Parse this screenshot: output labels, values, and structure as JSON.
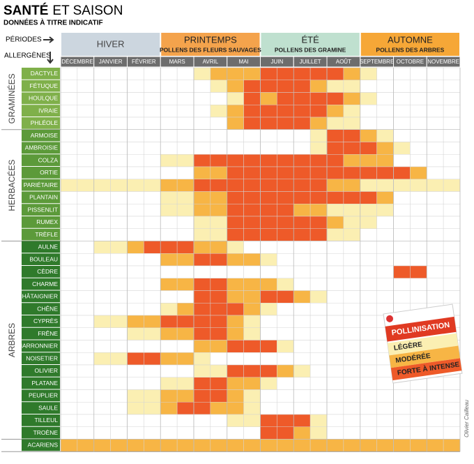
{
  "chart_data": {
    "type": "heatmap",
    "title": "SANTÉ",
    "title_suffix": "ET SAISON",
    "subtitle": "DONNÉES À TITRE INDICATIF",
    "periods_label": "PÉRIODES",
    "allergens_label": "ALLERGÈNES",
    "seasons": [
      {
        "name": "HIVER",
        "subtitle": null,
        "color": "#ccd6df",
        "months": [
          "DÉCEMBRE",
          "JANVIER",
          "FÉVRIER"
        ]
      },
      {
        "name": "PRINTEMPS",
        "subtitle": "POLLENS DES FLEURS SAUVAGES",
        "color": "#f4a34c",
        "months": [
          "MARS",
          "AVRIL",
          "MAI"
        ]
      },
      {
        "name": "ÉTÉ",
        "subtitle": "POLLENS DES GRAMINE",
        "color": "#bfe0cf",
        "months": [
          "JUIN",
          "JUILLET",
          "AOÛT"
        ]
      },
      {
        "name": "AUTOMNE",
        "subtitle": "POLLENS DES ARBRES",
        "color": "#f6a737",
        "months": [
          "SEPTEMBRE",
          "OCTOBRE",
          "NOVEMBRE"
        ]
      }
    ],
    "groups": [
      {
        "label": "GRAMINÉES",
        "color": "#7fb04a",
        "rows": [
          {
            "name": "DACTYLE",
            "values": [
              0,
              0,
              0,
              0,
              0,
              0,
              0,
              0,
              1,
              2,
              2,
              2,
              3,
              3,
              3,
              3,
              3,
              2,
              1,
              0,
              0,
              0,
              0,
              0
            ]
          },
          {
            "name": "FÉTUQUE",
            "values": [
              0,
              0,
              0,
              0,
              0,
              0,
              0,
              0,
              0,
              1,
              2,
              3,
              3,
              3,
              3,
              2,
              1,
              1,
              0,
              0,
              0,
              0,
              0,
              0
            ]
          },
          {
            "name": "HOULQUE",
            "values": [
              0,
              0,
              0,
              0,
              0,
              0,
              0,
              0,
              0,
              0,
              1,
              3,
              2,
              3,
              3,
              3,
              3,
              2,
              1,
              0,
              0,
              0,
              0,
              0
            ]
          },
          {
            "name": "IVRAIE",
            "values": [
              0,
              0,
              0,
              0,
              0,
              0,
              0,
              0,
              0,
              1,
              2,
              3,
              3,
              3,
              3,
              3,
              2,
              1,
              0,
              0,
              0,
              0,
              0,
              0
            ]
          },
          {
            "name": "PHLÉOLE",
            "values": [
              0,
              0,
              0,
              0,
              0,
              0,
              0,
              0,
              0,
              0,
              2,
              3,
              3,
              3,
              3,
              2,
              1,
              1,
              0,
              0,
              0,
              0,
              0,
              0
            ]
          }
        ]
      },
      {
        "label": "HERBACÉES",
        "color": "#5c9a3a",
        "rows": [
          {
            "name": "ARMOISE",
            "values": [
              0,
              0,
              0,
              0,
              0,
              0,
              0,
              0,
              0,
              0,
              0,
              0,
              0,
              0,
              0,
              1,
              3,
              3,
              2,
              1,
              0,
              0,
              0,
              0
            ]
          },
          {
            "name": "AMBROISIE",
            "values": [
              0,
              0,
              0,
              0,
              0,
              0,
              0,
              0,
              0,
              0,
              0,
              0,
              0,
              0,
              0,
              1,
              3,
              3,
              3,
              2,
              1,
              0,
              0,
              0
            ]
          },
          {
            "name": "COLZA",
            "values": [
              0,
              0,
              0,
              0,
              0,
              0,
              1,
              1,
              3,
              3,
              3,
              3,
              3,
              3,
              3,
              3,
              3,
              2,
              2,
              2,
              0,
              0,
              0,
              0
            ]
          },
          {
            "name": "ORTIE",
            "values": [
              0,
              0,
              0,
              0,
              0,
              0,
              0,
              0,
              2,
              2,
              3,
              3,
              3,
              3,
              3,
              3,
              3,
              3,
              3,
              3,
              3,
              2,
              0,
              0
            ]
          },
          {
            "name": "PARIÉTAIRE",
            "values": [
              1,
              1,
              1,
              1,
              1,
              1,
              2,
              2,
              3,
              3,
              3,
              3,
              3,
              3,
              3,
              3,
              2,
              2,
              1,
              1,
              1,
              1,
              1,
              1
            ]
          },
          {
            "name": "PLANTAIN",
            "values": [
              0,
              0,
              0,
              0,
              0,
              0,
              1,
              1,
              2,
              2,
              3,
              3,
              3,
              3,
              3,
              3,
              3,
              3,
              3,
              2,
              0,
              0,
              0,
              0
            ]
          },
          {
            "name": "PISSENLIT",
            "values": [
              0,
              0,
              0,
              0,
              0,
              0,
              1,
              1,
              2,
              2,
              3,
              3,
              3,
              3,
              2,
              2,
              1,
              1,
              1,
              1,
              0,
              0,
              0,
              0
            ]
          },
          {
            "name": "RUMEX",
            "values": [
              0,
              0,
              0,
              0,
              0,
              0,
              0,
              0,
              1,
              1,
              3,
              3,
              3,
              3,
              3,
              3,
              2,
              1,
              1,
              0,
              0,
              0,
              0,
              0
            ]
          },
          {
            "name": "TRÈFLE",
            "values": [
              0,
              0,
              0,
              0,
              0,
              0,
              0,
              0,
              1,
              1,
              3,
              3,
              3,
              3,
              3,
              3,
              1,
              1,
              0,
              0,
              0,
              0,
              0,
              0
            ]
          }
        ]
      },
      {
        "label": "ARBRES",
        "color": "#2f7a2b",
        "rows": [
          {
            "name": "AULNE",
            "values": [
              0,
              0,
              1,
              1,
              2,
              3,
              3,
              3,
              2,
              2,
              1,
              0,
              0,
              0,
              0,
              0,
              0,
              0,
              0,
              0,
              0,
              0,
              0,
              0
            ]
          },
          {
            "name": "BOULEAU",
            "values": [
              0,
              0,
              0,
              0,
              0,
              0,
              2,
              2,
              3,
              3,
              2,
              2,
              1,
              0,
              0,
              0,
              0,
              0,
              0,
              0,
              0,
              0,
              0,
              0
            ]
          },
          {
            "name": "CÈDRE",
            "values": [
              0,
              0,
              0,
              0,
              0,
              0,
              0,
              0,
              0,
              0,
              0,
              0,
              0,
              0,
              0,
              0,
              0,
              0,
              0,
              0,
              3,
              3,
              0,
              0
            ]
          },
          {
            "name": "CHARME",
            "values": [
              0,
              0,
              0,
              0,
              0,
              0,
              2,
              2,
              3,
              3,
              2,
              2,
              2,
              1,
              0,
              0,
              0,
              0,
              0,
              0,
              0,
              0,
              0,
              0
            ]
          },
          {
            "name": "CHÂTAIGNIER",
            "values": [
              0,
              0,
              0,
              0,
              0,
              0,
              0,
              0,
              3,
              3,
              2,
              2,
              3,
              3,
              2,
              1,
              0,
              0,
              0,
              0,
              0,
              0,
              0,
              0
            ]
          },
          {
            "name": "CHÊNE",
            "values": [
              0,
              0,
              0,
              0,
              0,
              0,
              1,
              2,
              3,
              3,
              3,
              2,
              1,
              0,
              0,
              0,
              0,
              0,
              0,
              0,
              0,
              0,
              0,
              0
            ]
          },
          {
            "name": "CYPRÈS",
            "values": [
              0,
              0,
              1,
              1,
              2,
              2,
              3,
              3,
              3,
              3,
              2,
              1,
              0,
              0,
              0,
              0,
              0,
              0,
              0,
              0,
              0,
              0,
              0,
              0
            ]
          },
          {
            "name": "FRÊNE",
            "values": [
              0,
              0,
              0,
              0,
              1,
              1,
              2,
              2,
              3,
              3,
              2,
              1,
              0,
              0,
              0,
              0,
              0,
              0,
              0,
              0,
              0,
              0,
              0,
              0
            ]
          },
          {
            "name": "MARRONNIER",
            "values": [
              0,
              0,
              0,
              0,
              0,
              0,
              0,
              0,
              2,
              2,
              3,
              3,
              3,
              1,
              0,
              0,
              0,
              0,
              0,
              0,
              0,
              0,
              0,
              0
            ]
          },
          {
            "name": "NOISETIER",
            "values": [
              0,
              0,
              1,
              1,
              3,
              3,
              2,
              2,
              1,
              0,
              0,
              0,
              0,
              0,
              0,
              0,
              0,
              0,
              0,
              0,
              0,
              0,
              0,
              0
            ]
          },
          {
            "name": "OLIVIER",
            "values": [
              0,
              0,
              0,
              0,
              0,
              0,
              0,
              0,
              1,
              1,
              3,
              3,
              3,
              2,
              1,
              0,
              0,
              0,
              0,
              0,
              0,
              0,
              0,
              0
            ]
          },
          {
            "name": "PLATANE",
            "values": [
              0,
              0,
              0,
              0,
              0,
              0,
              1,
              1,
              3,
              3,
              2,
              2,
              1,
              0,
              0,
              0,
              0,
              0,
              0,
              0,
              0,
              0,
              0,
              0
            ]
          },
          {
            "name": "PEUPLIER",
            "values": [
              0,
              0,
              0,
              0,
              1,
              1,
              2,
              2,
              3,
              3,
              2,
              1,
              0,
              0,
              0,
              0,
              0,
              0,
              0,
              0,
              0,
              0,
              0,
              0
            ]
          },
          {
            "name": "SAULE",
            "values": [
              0,
              0,
              0,
              0,
              1,
              1,
              2,
              3,
              3,
              2,
              2,
              1,
              0,
              0,
              0,
              0,
              0,
              0,
              0,
              0,
              0,
              0,
              0,
              0
            ]
          },
          {
            "name": "TILLEUL",
            "values": [
              0,
              0,
              0,
              0,
              0,
              0,
              0,
              0,
              0,
              0,
              1,
              1,
              3,
              3,
              3,
              1,
              0,
              0,
              0,
              0,
              0,
              0,
              0,
              0
            ]
          },
          {
            "name": "TROÈNE",
            "values": [
              0,
              0,
              0,
              0,
              0,
              0,
              0,
              0,
              0,
              0,
              0,
              0,
              3,
              3,
              2,
              1,
              0,
              0,
              0,
              0,
              0,
              0,
              0,
              0
            ]
          }
        ]
      },
      {
        "label": null,
        "color": "#2f7a2b",
        "rows": [
          {
            "name": "ACARIENS",
            "values": [
              2,
              2,
              2,
              2,
              2,
              2,
              2,
              2,
              2,
              2,
              2,
              2,
              2,
              2,
              2,
              2,
              2,
              2,
              2,
              2,
              2,
              2,
              2,
              2
            ]
          }
        ]
      }
    ],
    "legend": {
      "title": "POLLINISATION",
      "levels": [
        {
          "value": 1,
          "label": "LÉGÈRE",
          "color": "#fbefb2"
        },
        {
          "value": 2,
          "label": "MODÉRÉE",
          "color": "#f7b545"
        },
        {
          "value": 3,
          "label": "FORTE À INTENSE",
          "color": "#ee5a29"
        }
      ]
    },
    "credit": "Olivier Cailleau"
  }
}
